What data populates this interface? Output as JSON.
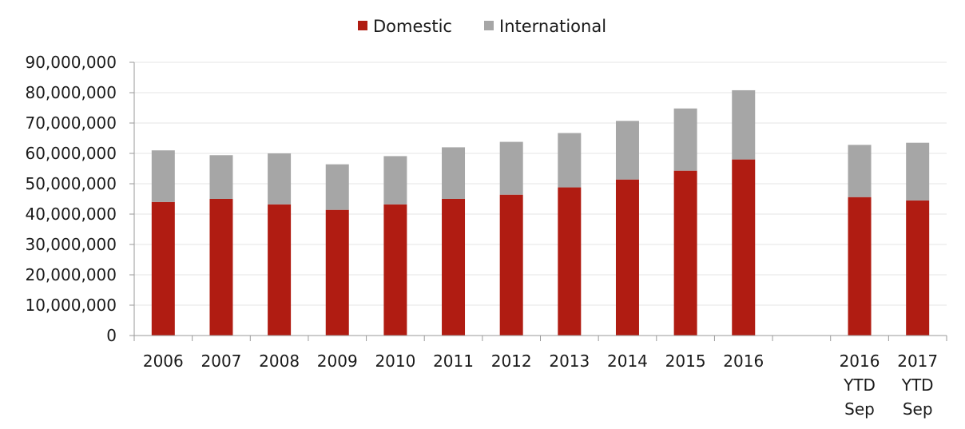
{
  "chart_data": {
    "type": "bar",
    "stacked": true,
    "categories": [
      "2006",
      "2007",
      "2008",
      "2009",
      "2010",
      "2011",
      "2012",
      "2013",
      "2014",
      "2015",
      "2016",
      "",
      "2016 YTD Sep",
      "2017 YTD Sep"
    ],
    "category_lines": [
      [
        "2006"
      ],
      [
        "2007"
      ],
      [
        "2008"
      ],
      [
        "2009"
      ],
      [
        "2010"
      ],
      [
        "2011"
      ],
      [
        "2012"
      ],
      [
        "2013"
      ],
      [
        "2014"
      ],
      [
        "2015"
      ],
      [
        "2016"
      ],
      [],
      [
        "2016",
        "YTD",
        "Sep"
      ],
      [
        "2017",
        "YTD",
        "Sep"
      ]
    ],
    "series": [
      {
        "name": "Domestic",
        "color": "#b01c12",
        "values": [
          44000000,
          45000000,
          43200000,
          41400000,
          43200000,
          45000000,
          46400000,
          48800000,
          51400000,
          54300000,
          58000000,
          null,
          45600000,
          44500000
        ]
      },
      {
        "name": "International",
        "color": "#a6a6a6",
        "values": [
          17000000,
          14400000,
          16800000,
          15000000,
          15900000,
          17000000,
          17400000,
          17900000,
          19300000,
          20500000,
          22800000,
          null,
          17200000,
          19000000
        ]
      }
    ],
    "ylim": [
      0,
      90000000
    ],
    "yticks": [
      0,
      10000000,
      20000000,
      30000000,
      40000000,
      50000000,
      60000000,
      70000000,
      80000000,
      90000000
    ],
    "ytick_labels": [
      "0",
      "10,000,000",
      "20,000,000",
      "30,000,000",
      "40,000,000",
      "50,000,000",
      "60,000,000",
      "70,000,000",
      "80,000,000",
      "90,000,000"
    ],
    "legend_position": "top-center",
    "grid": true,
    "grid_color": "#e6e6e6",
    "axis_color": "#9a9a9a"
  }
}
